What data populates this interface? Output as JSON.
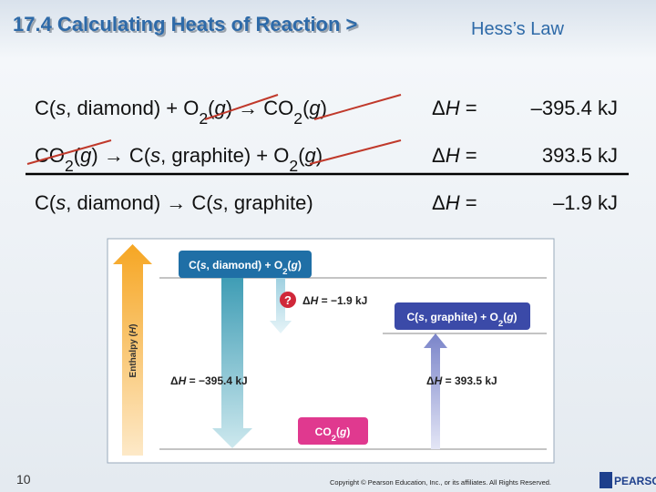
{
  "header": {
    "title": "17.4 Calculating Heats of Reaction >",
    "subtitle": "Hess’s Law"
  },
  "equations": [
    {
      "reaction": [
        {
          "text": "C("
        },
        {
          "text": "s",
          "style": "i"
        },
        {
          "text": ", diamond) + O"
        },
        {
          "text": "2",
          "style": "sub"
        },
        {
          "text": "("
        },
        {
          "text": "g",
          "style": "i"
        },
        {
          "text": ") → CO"
        },
        {
          "text": "2",
          "style": "sub"
        },
        {
          "text": "("
        },
        {
          "text": "g",
          "style": "i"
        },
        {
          "text": ")"
        }
      ],
      "dh": [
        {
          "text": "Δ"
        },
        {
          "text": "H",
          "style": "i"
        },
        {
          "text": " ="
        }
      ],
      "value": "–395.4 kJ"
    },
    {
      "reaction": [
        {
          "text": "CO"
        },
        {
          "text": "2",
          "style": "sub"
        },
        {
          "text": "("
        },
        {
          "text": "g",
          "style": "i"
        },
        {
          "text": ") → C("
        },
        {
          "text": "s",
          "style": "i"
        },
        {
          "text": ", graphite) + O"
        },
        {
          "text": "2",
          "style": "sub"
        },
        {
          "text": "("
        },
        {
          "text": "g",
          "style": "i"
        },
        {
          "text": ")"
        }
      ],
      "dh": [
        {
          "text": "Δ"
        },
        {
          "text": "H",
          "style": "i"
        },
        {
          "text": " ="
        }
      ],
      "value": "393.5 kJ"
    },
    {
      "reaction": [
        {
          "text": "C("
        },
        {
          "text": "s",
          "style": "i"
        },
        {
          "text": ", diamond) → C("
        },
        {
          "text": "s",
          "style": "i"
        },
        {
          "text": ", graphite)"
        }
      ],
      "dh": [
        {
          "text": "Δ"
        },
        {
          "text": "H",
          "style": "i"
        },
        {
          "text": " ="
        }
      ],
      "value": "–1.9 kJ"
    }
  ],
  "diagram": {
    "axis_label": [
      {
        "text": "Enthalpy ("
      },
      {
        "text": "H",
        "style": "i"
      },
      {
        "text": ")"
      }
    ],
    "box_top": [
      {
        "text": "C("
      },
      {
        "text": "s",
        "style": "i"
      },
      {
        "text": ", diamond) + O"
      },
      {
        "text": "2",
        "style": "sub"
      },
      {
        "text": "("
      },
      {
        "text": "g",
        "style": "i"
      },
      {
        "text": ")"
      }
    ],
    "box_mid": [
      {
        "text": "C("
      },
      {
        "text": "s",
        "style": "i"
      },
      {
        "text": ", graphite) + O"
      },
      {
        "text": "2",
        "style": "sub"
      },
      {
        "text": "("
      },
      {
        "text": "g",
        "style": "i"
      },
      {
        "text": ")"
      }
    ],
    "box_bottom": [
      {
        "text": "CO"
      },
      {
        "text": "2",
        "style": "sub"
      },
      {
        "text": "("
      },
      {
        "text": "g",
        "style": "i"
      },
      {
        "text": ")"
      }
    ],
    "question": "?",
    "label_small": [
      {
        "text": "Δ"
      },
      {
        "text": "H",
        "style": "i"
      },
      {
        "text": " = −1.9 kJ"
      }
    ],
    "label_left": [
      {
        "text": "Δ"
      },
      {
        "text": "H",
        "style": "i"
      },
      {
        "text": " = −395.4 kJ"
      }
    ],
    "label_right": [
      {
        "text": "Δ"
      },
      {
        "text": "H",
        "style": "i"
      },
      {
        "text": " = 393.5 kJ"
      }
    ]
  },
  "footer": {
    "page": "10",
    "copyright": "Copyright © Pearson Education, Inc., or its affiliates. All Rights Reserved.",
    "logo": "PEARSON"
  }
}
